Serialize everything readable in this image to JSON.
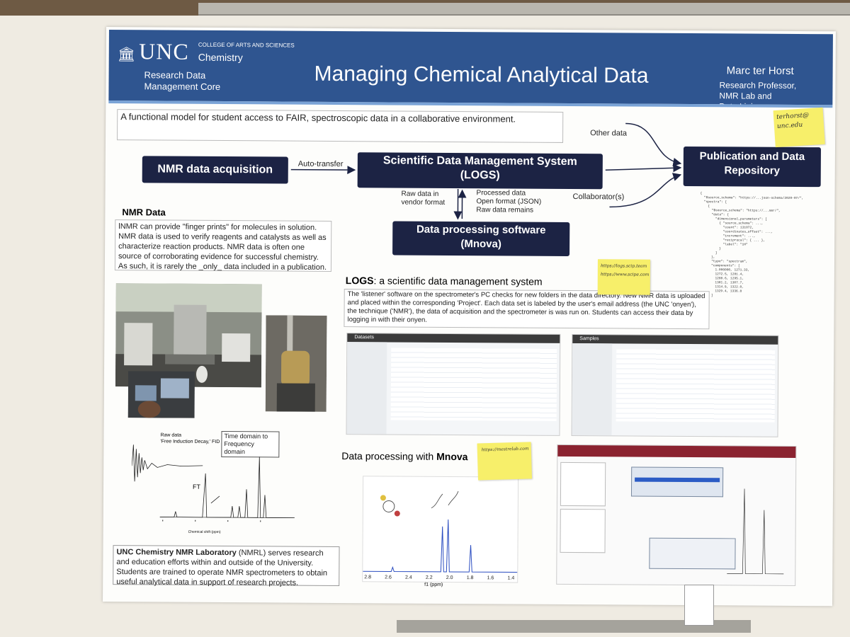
{
  "header": {
    "logo_text": "UNC",
    "college": "COLLEGE OF ARTS AND SCIENCES",
    "department": "Chemistry",
    "unit_line1": "Research Data",
    "unit_line2": "Management Core",
    "title": "Managing Chemical Analytical Data",
    "author": "Marc ter Horst",
    "role_line1": "Research Professor,",
    "role_line2": "NMR Lab and",
    "role_line3": "Data Liaison"
  },
  "intro": "A functional model for student access to FAIR, spectroscopic data in a collaborative environment.",
  "workflow": {
    "acquisition": "NMR data acquisition",
    "auto_transfer": "Auto-transfer",
    "sdms_line1": "Scientific Data Management System",
    "sdms_line2": "(LOGS)",
    "repository_line1": "Publication and Data",
    "repository_line2": "Repository",
    "other_data": "Other data",
    "collaborators": "Collaborator(s)",
    "raw_line1": "Raw data in",
    "raw_line2": "vendor format",
    "processed_line1": "Processed data",
    "processed_line2": "Open format (JSON)",
    "processed_line3": "Raw data remains",
    "software_line1": "Data processing software",
    "software_line2": "(Mnova)"
  },
  "nmr_section": {
    "heading": "NMR Data",
    "body": "lNMR can provide \"finger prints\" for molecules in solution. NMR data is used to verify reagents and catalysts as well as characterize reaction products. NMR data is often one source of corroborating evidence for successful chemistry. As such, it is rarely the _only_ data included in a publication."
  },
  "logs_section": {
    "heading_bold": "LOGS",
    "heading_rest": ": a scientific data management system",
    "body": "The 'listener' software on the spectrometer's PC checks for new folders in the data directory. New NMR data is uploaded and placed within the corresponding 'Project'. Each data set is labeled by the user's email address (the UNC 'onyen'), the technique ('NMR'), the data of acquisition and the spectrometer is was run on. Students can access their data by logging in with their onyen.",
    "screenshot1_tab": "Datasets",
    "screenshot2_tab": "Samples"
  },
  "fid": {
    "raw_line1": "Raw data",
    "raw_line2": "'Free Induction Decay,' FID",
    "ft": "FT",
    "conversion_line1": "Time domain to",
    "conversion_line2": "Frequency domain",
    "axis_label": "Chemical shift (ppm)"
  },
  "mnova_section": {
    "heading_prefix": "Data processing with ",
    "heading_bold": "Mnova",
    "axis_label": "f1 (ppm)",
    "ticks": [
      "2.8",
      "2.6",
      "2.4",
      "2.2",
      "2.0",
      "1.8",
      "1.6",
      "1.4"
    ]
  },
  "nmrl": {
    "bold": "UNC Chemistry NMR Laboratory",
    "body": " (NMRL) serves research and education efforts within and outside of the University. Students are trained to operate NMR spectrometers to obtain useful analytical data in support of research projects."
  },
  "notes": {
    "email_line1": "terhorst@",
    "email_line2": "unc.edu",
    "urls_line1": "https://logs.scip.team",
    "urls_line2": "https://www.scipe.com",
    "mnova_url": "https://mestrelab.com"
  },
  "colors": {
    "header": "#2f5590",
    "box_dark": "#1c2344",
    "note": "#f7ef6a"
  }
}
